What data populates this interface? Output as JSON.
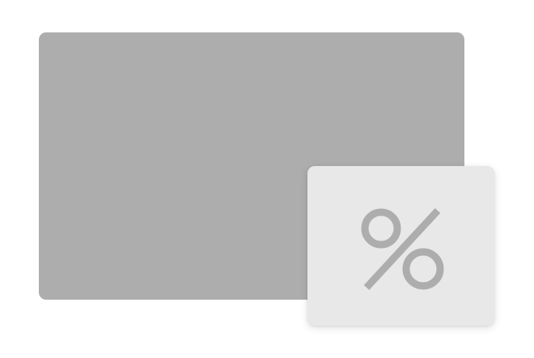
{
  "illustration": {
    "background_panel": {
      "color": "#adadad"
    },
    "badge": {
      "color": "#e8e8e8",
      "icon": "percent-icon",
      "icon_color": "#adadad"
    }
  }
}
